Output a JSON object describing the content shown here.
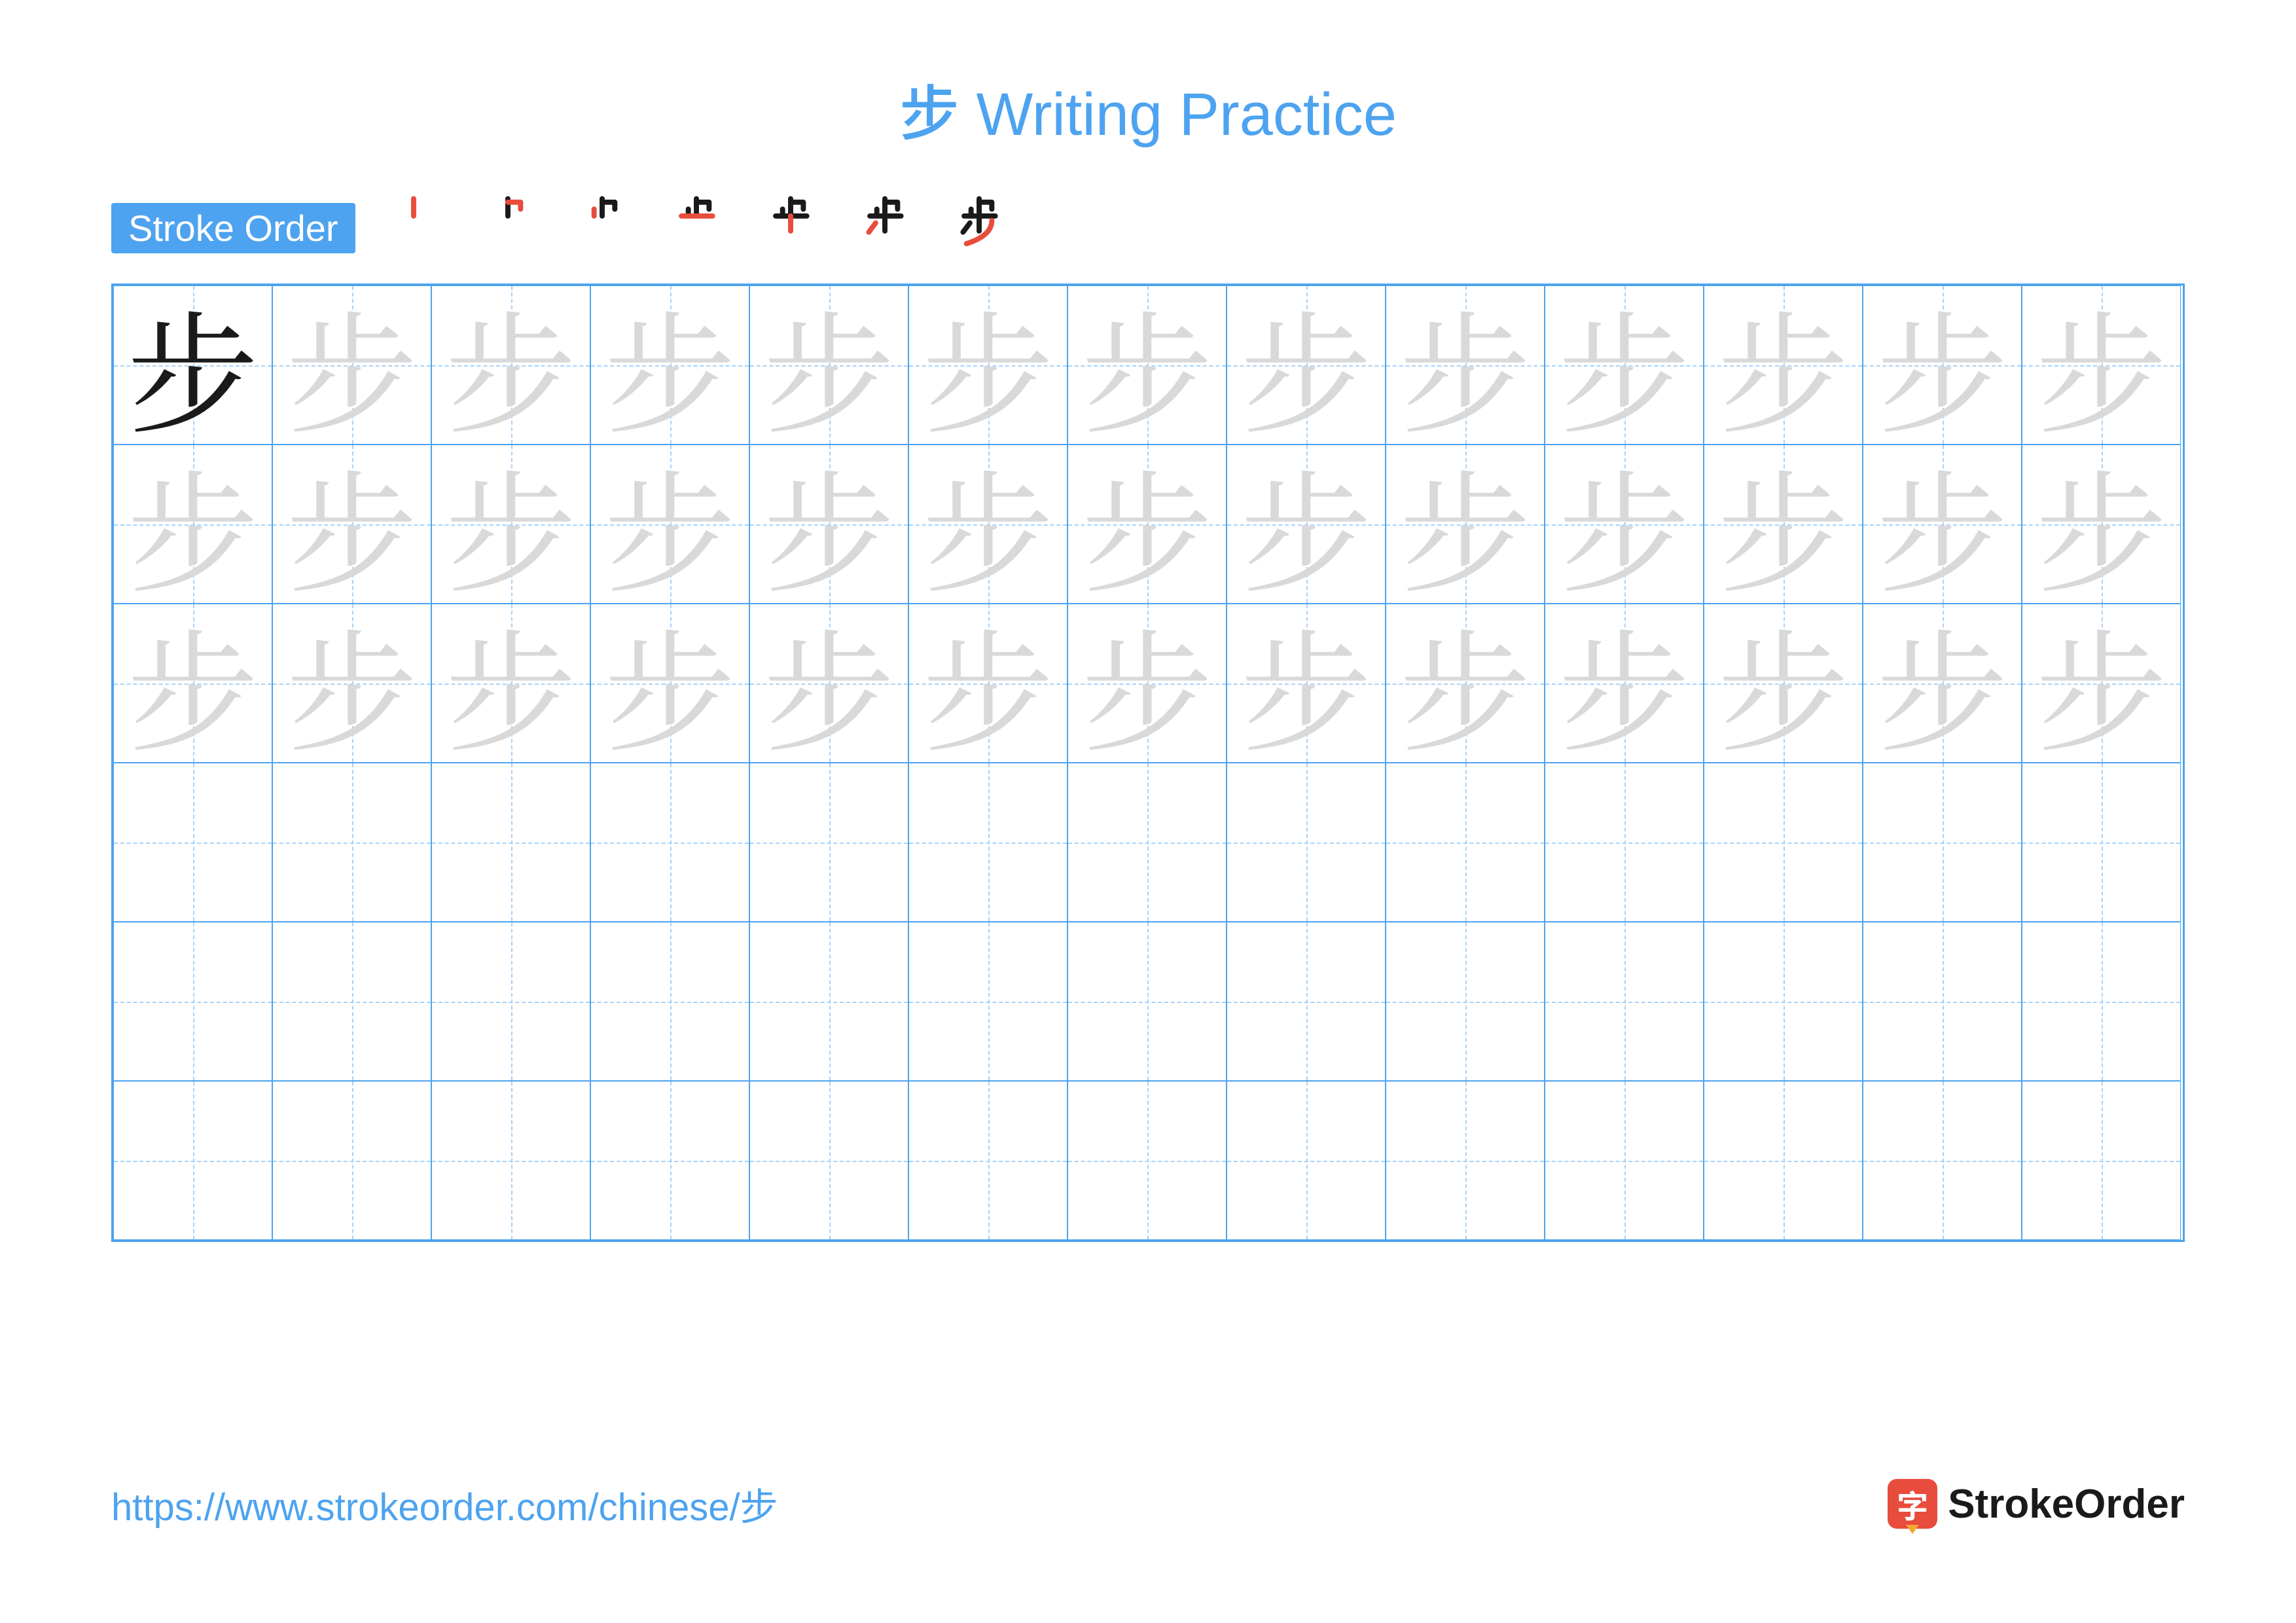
{
  "title": "步 Writing Practice",
  "strokeOrderLabel": "Stroke Order",
  "character": "步",
  "strokeCount": 7,
  "grid": {
    "columns": 13,
    "rows": 6,
    "traceRows": 3,
    "emptyRows": 3,
    "cellSize": 243,
    "borderColor": "#4da3ef",
    "guideColor": "#a8d3f7",
    "darkCharColor": "#1a1a1a",
    "traceCharColor": "#d9d9d9",
    "charFontSize": 200
  },
  "colors": {
    "accent": "#4da3ef",
    "background": "#ffffff",
    "strokeHighlight": "#e84c3d",
    "strokeBase": "#1a1a1a",
    "logoBg": "#e84c3d"
  },
  "footer": {
    "url": "https://www.strokeorder.com/chinese/步",
    "logoChar": "字",
    "logoText": "StrokeOrder"
  },
  "typography": {
    "titleFontSize": 92,
    "titleColor": "#4da3ef",
    "labelFontSize": 56,
    "urlFontSize": 58,
    "logoFontSize": 62
  },
  "strokeSteps": [
    {
      "redStrokes": [
        1
      ],
      "blackStrokes": []
    },
    {
      "redStrokes": [
        2
      ],
      "blackStrokes": [
        1
      ]
    },
    {
      "redStrokes": [
        3
      ],
      "blackStrokes": [
        1,
        2
      ]
    },
    {
      "redStrokes": [
        4
      ],
      "blackStrokes": [
        1,
        2,
        3
      ]
    },
    {
      "redStrokes": [
        5
      ],
      "blackStrokes": [
        1,
        2,
        3,
        4
      ]
    },
    {
      "redStrokes": [
        6
      ],
      "blackStrokes": [
        1,
        2,
        3,
        4,
        5
      ]
    },
    {
      "redStrokes": [
        7
      ],
      "blackStrokes": [
        1,
        2,
        3,
        4,
        5,
        6
      ]
    }
  ]
}
